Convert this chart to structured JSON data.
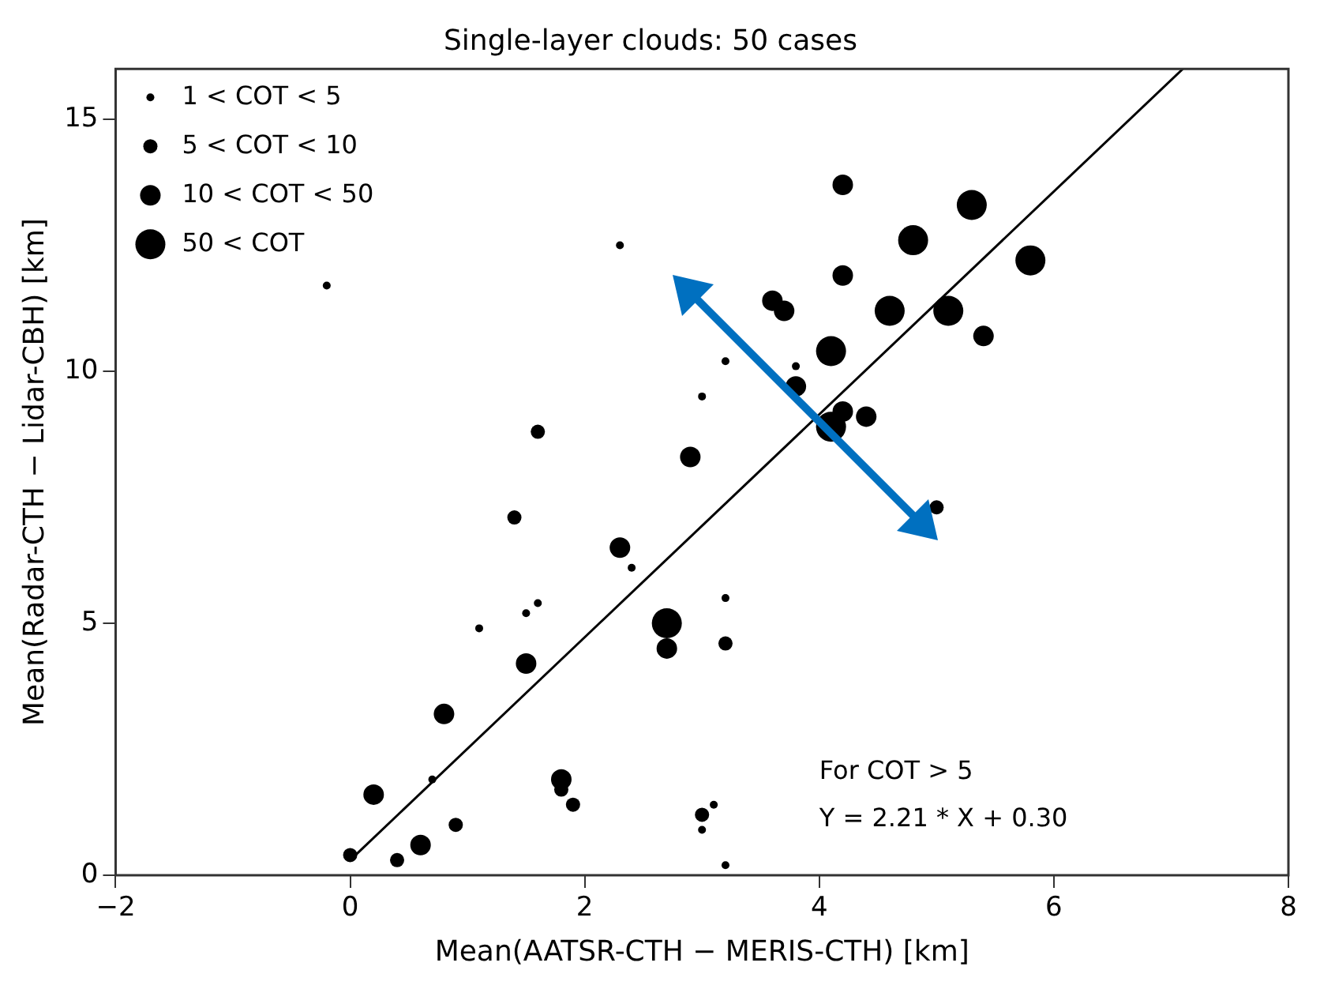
{
  "chart_data": {
    "type": "scatter",
    "title": "Single-layer clouds: 50 cases",
    "xlabel": "Mean(AATSR-CTH − MERIS-CTH) [km]",
    "ylabel": "Mean(Radar-CTH − Lidar-CBH) [km]",
    "xlim": [
      -2,
      8
    ],
    "xticks": [
      -2,
      0,
      2,
      4,
      6,
      8
    ],
    "ylim": [
      0,
      16
    ],
    "yticks": [
      0,
      5,
      10,
      15
    ],
    "grid": false,
    "legend": "top left",
    "marker": "circle",
    "annotations": [
      "For COT > 5",
      "Y = 2.21 * X + 0.30"
    ],
    "series": [
      {
        "name": "1 < COT < 5",
        "color": "#000000",
        "x": [
          -0.2,
          2.3,
          3.2,
          3.8,
          3.0,
          2.4,
          1.6,
          1.5,
          1.1,
          0.7,
          3.1,
          3.0,
          3.2,
          3.2
        ],
        "values": [
          11.7,
          12.5,
          10.2,
          10.1,
          9.5,
          6.1,
          5.4,
          5.2,
          4.9,
          1.9,
          1.4,
          0.9,
          0.2,
          5.5
        ]
      },
      {
        "name": "5 < COT < 10",
        "color": "#000000",
        "x": [
          1.6,
          5.0,
          1.4,
          1.8,
          1.9,
          0.9,
          0.0,
          0.4,
          3.0,
          3.2
        ],
        "values": [
          8.8,
          7.3,
          7.1,
          1.7,
          1.4,
          1.0,
          0.4,
          0.3,
          1.2,
          4.6
        ]
      },
      {
        "name": "10 < COT < 50",
        "color": "#000000",
        "x": [
          4.2,
          4.2,
          3.6,
          3.7,
          5.4,
          3.8,
          4.2,
          4.4,
          2.9,
          2.3,
          2.7,
          1.5,
          0.8,
          0.2,
          1.8,
          0.6
        ],
        "values": [
          13.7,
          11.9,
          11.4,
          11.2,
          10.7,
          9.7,
          9.2,
          9.1,
          8.3,
          6.5,
          4.5,
          4.2,
          3.2,
          1.6,
          1.9,
          0.6
        ]
      },
      {
        "name": "50 < COT",
        "color": "#000000",
        "x": [
          5.3,
          4.8,
          5.8,
          4.6,
          5.1,
          4.1,
          4.1,
          2.7
        ],
        "values": [
          13.3,
          12.6,
          12.2,
          11.2,
          11.2,
          10.4,
          8.9,
          5.0
        ]
      },
      {
        "type": "line",
        "color": "#000000",
        "line_style": "solid",
        "marker": "none",
        "x": [
          0,
          7.1
        ],
        "values": [
          0.3,
          16.0
        ]
      }
    ]
  }
}
